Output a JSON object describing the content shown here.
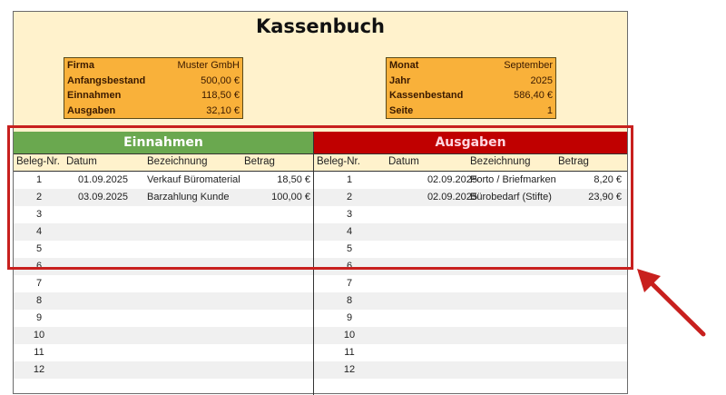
{
  "title": "Kassenbuch",
  "info_left": [
    {
      "label": "Firma",
      "value": "Muster GmbH"
    },
    {
      "label": "Anfangsbestand",
      "value": "500,00 €"
    },
    {
      "label": "Einnahmen",
      "value": "118,50 €"
    },
    {
      "label": "Ausgaben",
      "value": "32,10 €"
    }
  ],
  "info_right": [
    {
      "label": "Monat",
      "value": "September"
    },
    {
      "label": "Jahr",
      "value": "2025"
    },
    {
      "label": "Kassenbestand",
      "value": "586,40 €"
    },
    {
      "label": "Seite",
      "value": "1"
    }
  ],
  "einnahmen": {
    "header": "Einnahmen",
    "color": "#6aa84f",
    "columns": [
      "Beleg-Nr.",
      "Datum",
      "Bezeichnung",
      "Betrag"
    ],
    "rows": [
      {
        "nr": "1",
        "datum": "01.09.2025",
        "bez": "Verkauf Büromaterial",
        "betrag": "18,50 €"
      },
      {
        "nr": "2",
        "datum": "03.09.2025",
        "bez": "Barzahlung Kunde",
        "betrag": "100,00 €"
      },
      {
        "nr": "3"
      },
      {
        "nr": "4"
      },
      {
        "nr": "5"
      },
      {
        "nr": "6"
      },
      {
        "nr": "7"
      },
      {
        "nr": "8"
      },
      {
        "nr": "9"
      },
      {
        "nr": "10"
      },
      {
        "nr": "11"
      },
      {
        "nr": "12"
      }
    ]
  },
  "ausgaben": {
    "header": "Ausgaben",
    "color": "#c00000",
    "columns": [
      "Beleg-Nr.",
      "Datum",
      "Bezeichnung",
      "Betrag"
    ],
    "rows": [
      {
        "nr": "1",
        "datum": "02.09.2025",
        "bez": "Porto / Briefmarken",
        "betrag": "8,20 €"
      },
      {
        "nr": "2",
        "datum": "02.09.2025",
        "bez": "Bürobedarf (Stifte)",
        "betrag": "23,90 €"
      },
      {
        "nr": "3"
      },
      {
        "nr": "4"
      },
      {
        "nr": "5"
      },
      {
        "nr": "6"
      },
      {
        "nr": "7"
      },
      {
        "nr": "8"
      },
      {
        "nr": "9"
      },
      {
        "nr": "10"
      },
      {
        "nr": "11"
      },
      {
        "nr": "12"
      }
    ]
  },
  "annotation_color": "#c8201e"
}
